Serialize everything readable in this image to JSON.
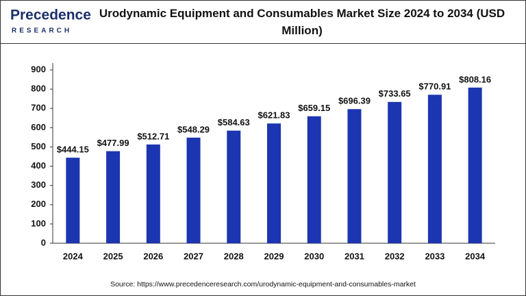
{
  "logo": {
    "name": "Precedence",
    "tagline": "RESEARCH"
  },
  "chart_data": {
    "type": "bar",
    "title": "Urodynamic Equipment and Consumables Market Size 2024 to 2034 (USD Million)",
    "categories": [
      "2024",
      "2025",
      "2026",
      "2027",
      "2028",
      "2029",
      "2030",
      "2031",
      "2032",
      "2033",
      "2034"
    ],
    "values": [
      444.15,
      477.99,
      512.71,
      548.29,
      584.63,
      621.83,
      659.15,
      696.39,
      733.65,
      770.91,
      808.16
    ],
    "value_labels": [
      "$444.15",
      "$477.99",
      "$512.71",
      "$548.29",
      "$584.63",
      "$621.83",
      "$659.15",
      "$696.39",
      "$733.65",
      "$770.91",
      "$808.16"
    ],
    "color": "#1c35b0",
    "ylim": [
      0,
      900
    ],
    "yticks": [
      0,
      100,
      200,
      300,
      400,
      500,
      600,
      700,
      800,
      900
    ],
    "grid": false,
    "source": "Source: https://www.precedenceresearch.com/urodynamic-equipment-and-consumables-market"
  }
}
